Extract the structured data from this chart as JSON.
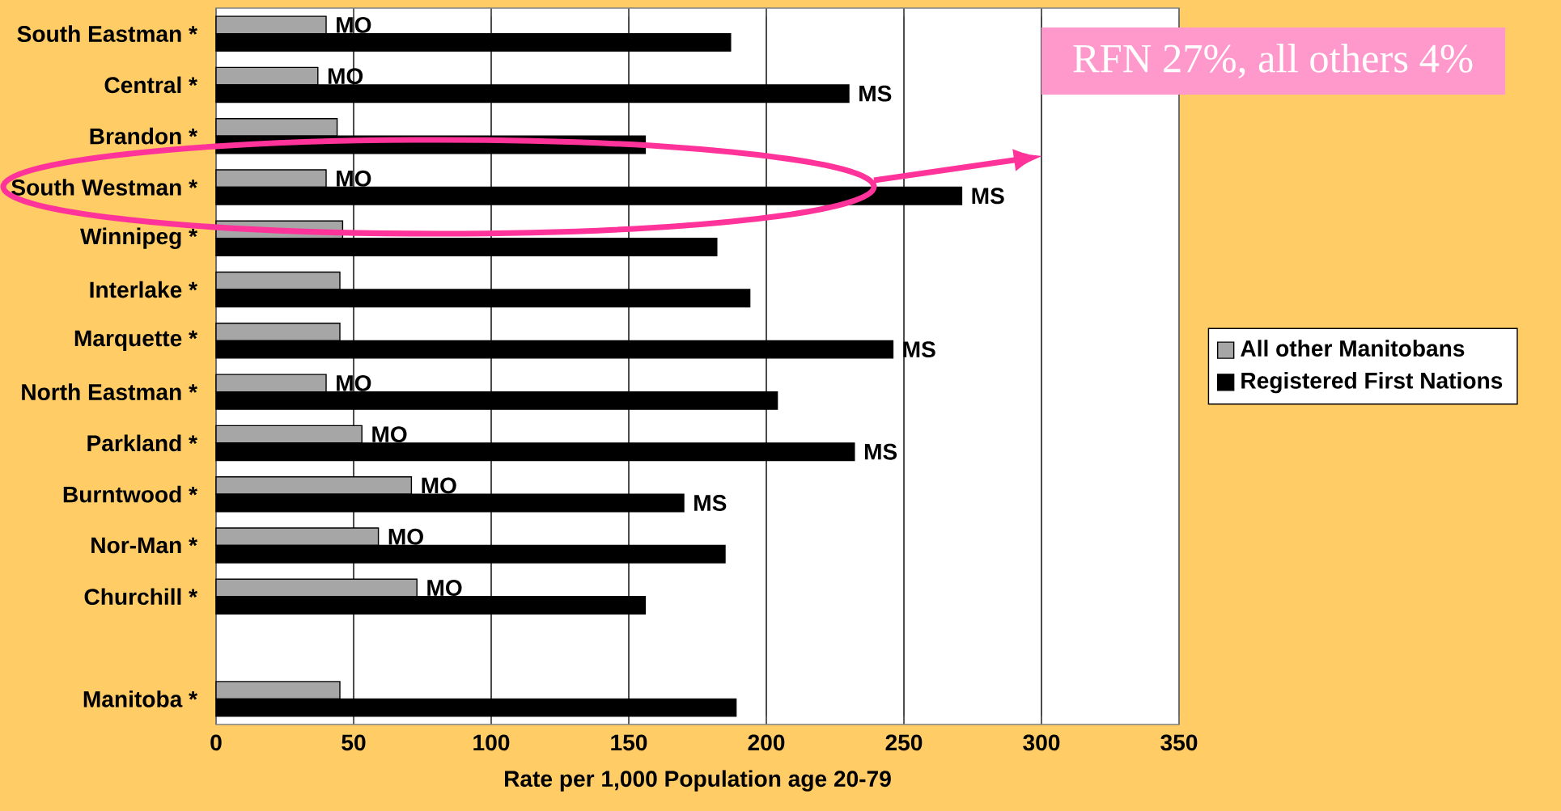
{
  "chart_data": {
    "type": "bar",
    "orientation": "horizontal",
    "xlabel": "Rate per 1,000 Population age 20-79",
    "categories": [
      "South Eastman *",
      "Central *",
      "Brandon *",
      "South Westman *",
      "Winnipeg *",
      "Interlake *",
      "Marquette *",
      "North Eastman *",
      "Parkland *",
      "Burntwood *",
      "Nor-Man *",
      "Churchill *",
      null,
      "Manitoba *"
    ],
    "series": [
      {
        "name": "All other Manitobans",
        "color": "#a6a6a6",
        "values": [
          40,
          37,
          44,
          40,
          46,
          45,
          45,
          40,
          53,
          71,
          59,
          73,
          null,
          45
        ],
        "value_labels": [
          "MO",
          "MO",
          null,
          "MO",
          null,
          null,
          null,
          "MO",
          "MO",
          "MO",
          "MO",
          "MO",
          null,
          null
        ]
      },
      {
        "name": "Registered First Nations",
        "color": "#000000",
        "values": [
          187,
          230,
          156,
          271,
          182,
          194,
          246,
          204,
          232,
          170,
          185,
          156,
          null,
          189
        ],
        "value_labels": [
          null,
          "MS",
          null,
          "MS",
          null,
          null,
          "MS",
          null,
          "MS",
          "MS",
          null,
          null,
          null,
          null
        ]
      }
    ],
    "xlim": [
      0,
      350
    ],
    "xticks": [
      0,
      50,
      100,
      150,
      200,
      250,
      300,
      350
    ],
    "grid": "x",
    "legend": "right",
    "annotations": [
      "RFN 27%, all others 4%"
    ]
  }
}
